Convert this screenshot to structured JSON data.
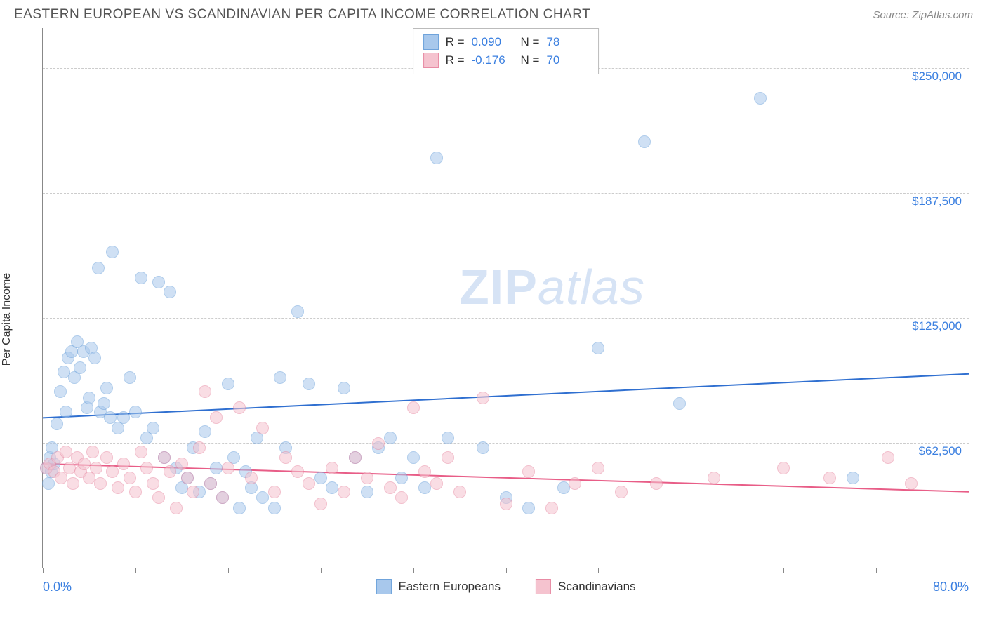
{
  "title": "EASTERN EUROPEAN VS SCANDINAVIAN PER CAPITA INCOME CORRELATION CHART",
  "source": "Source: ZipAtlas.com",
  "watermark_bold": "ZIP",
  "watermark_light": "atlas",
  "ylabel": "Per Capita Income",
  "chart": {
    "type": "scatter",
    "xlim": [
      0,
      80
    ],
    "ylim": [
      0,
      270000
    ],
    "x_min_label": "0.0%",
    "x_max_label": "80.0%",
    "x_ticks": [
      0,
      8,
      16,
      24,
      32,
      40,
      48,
      56,
      64,
      72,
      80
    ],
    "y_gridlines": [
      {
        "value": 62500,
        "label": "$62,500"
      },
      {
        "value": 125000,
        "label": "$125,000"
      },
      {
        "value": 187500,
        "label": "$187,500"
      },
      {
        "value": 250000,
        "label": "$250,000"
      }
    ],
    "grid_color": "#cccccc",
    "axis_color": "#888888",
    "background_color": "#ffffff",
    "label_color": "#3a7fe0",
    "marker_size": 18,
    "marker_opacity": 0.55,
    "series": [
      {
        "key": "eastern",
        "label": "Eastern Europeans",
        "fill": "#a8c8ec",
        "stroke": "#6fa3db",
        "line_stroke": "#2f6fd0",
        "r_label": "R =",
        "r_value": "0.090",
        "n_label": "N =",
        "n_value": "78",
        "trend": {
          "y_at_xmin": 75000,
          "y_at_xmax": 97000
        },
        "points": [
          [
            0.3,
            50000
          ],
          [
            0.5,
            42000
          ],
          [
            0.6,
            55000
          ],
          [
            0.7,
            48000
          ],
          [
            0.8,
            60000
          ],
          [
            1.0,
            52000
          ],
          [
            1.2,
            72000
          ],
          [
            1.5,
            88000
          ],
          [
            1.8,
            98000
          ],
          [
            2.0,
            78000
          ],
          [
            2.2,
            105000
          ],
          [
            2.5,
            108000
          ],
          [
            2.7,
            95000
          ],
          [
            3.0,
            113000
          ],
          [
            3.2,
            100000
          ],
          [
            3.5,
            108000
          ],
          [
            3.8,
            80000
          ],
          [
            4.0,
            85000
          ],
          [
            4.2,
            110000
          ],
          [
            4.5,
            105000
          ],
          [
            4.8,
            150000
          ],
          [
            5.0,
            78000
          ],
          [
            5.3,
            82000
          ],
          [
            5.5,
            90000
          ],
          [
            5.8,
            75000
          ],
          [
            6.0,
            158000
          ],
          [
            6.5,
            70000
          ],
          [
            7.0,
            75000
          ],
          [
            7.5,
            95000
          ],
          [
            8.0,
            78000
          ],
          [
            8.5,
            145000
          ],
          [
            9.0,
            65000
          ],
          [
            9.5,
            70000
          ],
          [
            10.0,
            143000
          ],
          [
            10.5,
            55000
          ],
          [
            11.0,
            138000
          ],
          [
            11.5,
            50000
          ],
          [
            12.0,
            40000
          ],
          [
            12.5,
            45000
          ],
          [
            13.0,
            60000
          ],
          [
            13.5,
            38000
          ],
          [
            14.0,
            68000
          ],
          [
            14.5,
            42000
          ],
          [
            15.0,
            50000
          ],
          [
            15.5,
            35000
          ],
          [
            16.0,
            92000
          ],
          [
            16.5,
            55000
          ],
          [
            17.0,
            30000
          ],
          [
            17.5,
            48000
          ],
          [
            18.0,
            40000
          ],
          [
            18.5,
            65000
          ],
          [
            19.0,
            35000
          ],
          [
            20.0,
            30000
          ],
          [
            20.5,
            95000
          ],
          [
            21.0,
            60000
          ],
          [
            22.0,
            128000
          ],
          [
            23.0,
            92000
          ],
          [
            24.0,
            45000
          ],
          [
            25.0,
            40000
          ],
          [
            26.0,
            90000
          ],
          [
            27.0,
            55000
          ],
          [
            28.0,
            38000
          ],
          [
            29.0,
            60000
          ],
          [
            30.0,
            65000
          ],
          [
            31.0,
            45000
          ],
          [
            32.0,
            55000
          ],
          [
            33.0,
            40000
          ],
          [
            34.0,
            205000
          ],
          [
            35.0,
            65000
          ],
          [
            38.0,
            60000
          ],
          [
            40.0,
            35000
          ],
          [
            42.0,
            30000
          ],
          [
            45.0,
            40000
          ],
          [
            48.0,
            110000
          ],
          [
            52.0,
            213000
          ],
          [
            55.0,
            82000
          ],
          [
            62.0,
            235000
          ],
          [
            70.0,
            45000
          ]
        ]
      },
      {
        "key": "scandinavian",
        "label": "Scandinavians",
        "fill": "#f5c3cf",
        "stroke": "#e88ba4",
        "line_stroke": "#e85d87",
        "r_label": "R =",
        "r_value": "-0.176",
        "n_label": "N =",
        "n_value": "70",
        "trend": {
          "y_at_xmin": 52000,
          "y_at_xmax": 38000
        },
        "points": [
          [
            0.3,
            50000
          ],
          [
            0.6,
            52000
          ],
          [
            1.0,
            48000
          ],
          [
            1.3,
            55000
          ],
          [
            1.6,
            45000
          ],
          [
            2.0,
            58000
          ],
          [
            2.3,
            50000
          ],
          [
            2.6,
            42000
          ],
          [
            3.0,
            55000
          ],
          [
            3.3,
            48000
          ],
          [
            3.6,
            52000
          ],
          [
            4.0,
            45000
          ],
          [
            4.3,
            58000
          ],
          [
            4.6,
            50000
          ],
          [
            5.0,
            42000
          ],
          [
            5.5,
            55000
          ],
          [
            6.0,
            48000
          ],
          [
            6.5,
            40000
          ],
          [
            7.0,
            52000
          ],
          [
            7.5,
            45000
          ],
          [
            8.0,
            38000
          ],
          [
            8.5,
            58000
          ],
          [
            9.0,
            50000
          ],
          [
            9.5,
            42000
          ],
          [
            10.0,
            35000
          ],
          [
            10.5,
            55000
          ],
          [
            11.0,
            48000
          ],
          [
            11.5,
            30000
          ],
          [
            12.0,
            52000
          ],
          [
            12.5,
            45000
          ],
          [
            13.0,
            38000
          ],
          [
            13.5,
            60000
          ],
          [
            14.0,
            88000
          ],
          [
            14.5,
            42000
          ],
          [
            15.0,
            75000
          ],
          [
            15.5,
            35000
          ],
          [
            16.0,
            50000
          ],
          [
            17.0,
            80000
          ],
          [
            18.0,
            45000
          ],
          [
            19.0,
            70000
          ],
          [
            20.0,
            38000
          ],
          [
            21.0,
            55000
          ],
          [
            22.0,
            48000
          ],
          [
            23.0,
            42000
          ],
          [
            24.0,
            32000
          ],
          [
            25.0,
            50000
          ],
          [
            26.0,
            38000
          ],
          [
            27.0,
            55000
          ],
          [
            28.0,
            45000
          ],
          [
            29.0,
            62000
          ],
          [
            30.0,
            40000
          ],
          [
            31.0,
            35000
          ],
          [
            32.0,
            80000
          ],
          [
            33.0,
            48000
          ],
          [
            34.0,
            42000
          ],
          [
            35.0,
            55000
          ],
          [
            36.0,
            38000
          ],
          [
            38.0,
            85000
          ],
          [
            40.0,
            32000
          ],
          [
            42.0,
            48000
          ],
          [
            44.0,
            30000
          ],
          [
            46.0,
            42000
          ],
          [
            48.0,
            50000
          ],
          [
            50.0,
            38000
          ],
          [
            53.0,
            42000
          ],
          [
            58.0,
            45000
          ],
          [
            64.0,
            50000
          ],
          [
            68.0,
            45000
          ],
          [
            73.0,
            55000
          ],
          [
            75.0,
            42000
          ]
        ]
      }
    ]
  }
}
